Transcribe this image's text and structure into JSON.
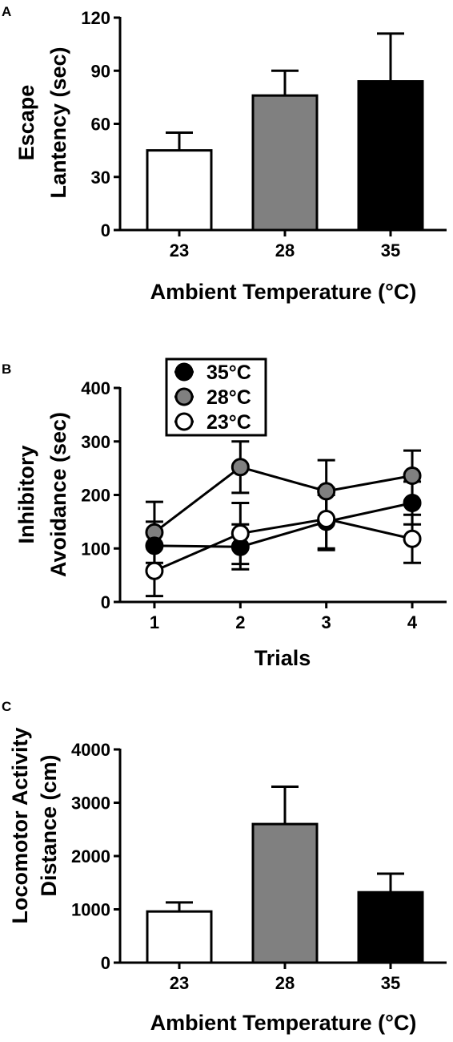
{
  "chart_data": [
    {
      "panel": "A",
      "type": "bar",
      "categories": [
        "23",
        "28",
        "35"
      ],
      "values": [
        45,
        76,
        84
      ],
      "errors": [
        10,
        14,
        27
      ],
      "colors": [
        "#ffffff",
        "#808080",
        "#000000"
      ],
      "xlabel": "Ambient Temperature (°C)",
      "ylabel": [
        "Escape",
        "Lantency (sec)"
      ],
      "ylim": [
        0,
        120
      ],
      "yticks": [
        0,
        30,
        60,
        90,
        120
      ],
      "grid": false
    },
    {
      "panel": "B",
      "type": "line",
      "x": [
        1,
        2,
        3,
        4
      ],
      "xlim": [
        0.6,
        4.4
      ],
      "series": [
        {
          "name": "28°C",
          "color": "#808080",
          "values": [
            130,
            252,
            207,
            236
          ],
          "errors": [
            57,
            48,
            58,
            47
          ]
        },
        {
          "name": "35°C",
          "color": "#000000",
          "values": [
            105,
            103,
            150,
            185
          ],
          "errors": [
            45,
            42,
            50,
            40
          ]
        },
        {
          "name": "23°C",
          "color": "#ffffff",
          "values": [
            58,
            128,
            155,
            118
          ],
          "errors": [
            47,
            57,
            58,
            45
          ]
        }
      ],
      "legend_order": [
        "35°C",
        "28°C",
        "23°C"
      ],
      "legend_position": "top-left",
      "xlabel": "Trials",
      "ylabel": [
        "Inhibitory",
        "Avoidance (sec)"
      ],
      "ylim": [
        0,
        400
      ],
      "yticks": [
        0,
        100,
        200,
        300,
        400
      ],
      "grid": false
    },
    {
      "panel": "C",
      "type": "bar",
      "categories": [
        "23",
        "28",
        "35"
      ],
      "values": [
        960,
        2600,
        1320
      ],
      "errors": [
        170,
        700,
        350
      ],
      "colors": [
        "#ffffff",
        "#808080",
        "#000000"
      ],
      "xlabel": "Ambient Temperature (°C)",
      "ylabel": [
        "Locomotor Activity",
        "Distance (cm)"
      ],
      "ylim": [
        0,
        4000
      ],
      "yticks": [
        0,
        1000,
        2000,
        3000,
        4000
      ],
      "grid": false
    }
  ]
}
